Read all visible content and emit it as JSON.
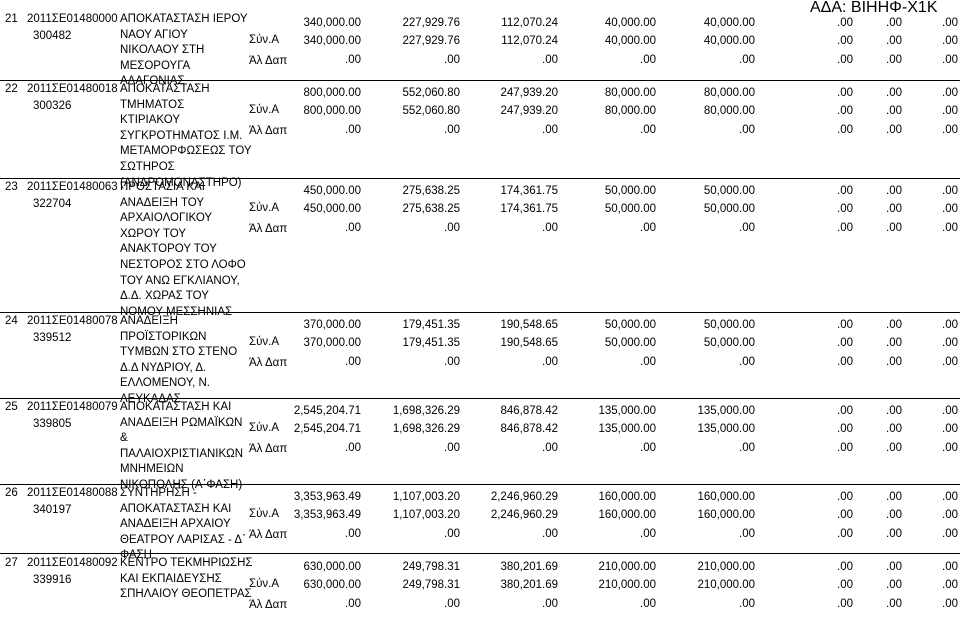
{
  "header": {
    "ada": "ΑΔΑ: ΒΙΗΗΦ-Χ1Κ"
  },
  "labels": {
    "sum": "Σύν.Α",
    "other": "Άλ Δαπ"
  },
  "projects": [
    {
      "seq": "21",
      "code": "2011ΣΕ01480000",
      "mis": "300482",
      "title_lines": [
        "ΑΠΟΚΑΤΑΣΤΑΣΗ ΙΕΡΟΥ",
        "ΝΑΟΥ ΑΓΙΟΥ",
        "ΝΙΚΟΛΑΟΥ ΣΤΗ",
        "ΜΕΣΟΡΟΥΓΑ",
        "ΑΛΑΓΟΝΙΑΣ"
      ],
      "rows": [
        [
          "340,000.00",
          "227,929.76",
          "112,070.24",
          "40,000.00",
          "40,000.00",
          ".00",
          ".00",
          ".00"
        ],
        [
          "340,000.00",
          "227,929.76",
          "112,070.24",
          "40,000.00",
          "40,000.00",
          ".00",
          ".00",
          ".00"
        ],
        [
          ".00",
          ".00",
          ".00",
          ".00",
          ".00",
          ".00",
          ".00",
          ".00"
        ]
      ]
    },
    {
      "seq": "22",
      "code": "2011ΣΕ01480018",
      "mis": "300326",
      "title_lines": [
        "ΑΠΟΚΑΤΑΣΤΑΣΗ",
        "ΤΜΗΜΑΤΟΣ",
        "ΚΤΙΡΙΑΚΟΥ",
        "ΣΥΓΚΡΟΤΗΜΑΤΟΣ Ι.Μ.",
        "ΜΕΤΑΜΟΡΦΩΣΕΩΣ ΤΟΥ",
        "ΣΩΤΗΡΟΣ",
        "(ΑΝΔΡΟΜΟΝΑΣΤΗΡΟ)"
      ],
      "rows": [
        [
          "800,000.00",
          "552,060.80",
          "247,939.20",
          "80,000.00",
          "80,000.00",
          ".00",
          ".00",
          ".00"
        ],
        [
          "800,000.00",
          "552,060.80",
          "247,939.20",
          "80,000.00",
          "80,000.00",
          ".00",
          ".00",
          ".00"
        ],
        [
          ".00",
          ".00",
          ".00",
          ".00",
          ".00",
          ".00",
          ".00",
          ".00"
        ]
      ]
    },
    {
      "seq": "23",
      "code": "2011ΣΕ01480063",
      "mis": "322704",
      "title_lines": [
        "ΠΡΟΣΤΑΣΙΑ ΚΑΙ",
        "ΑΝΑΔΕΙΞΗ ΤΟΥ",
        "ΑΡΧΑΙΟΛΟΓΙΚΟΥ",
        "ΧΩΡΟΥ ΤΟΥ",
        "ΑΝΑΚΤΟΡΟΥ ΤΟΥ",
        "ΝΕΣΤΟΡΟΣ ΣΤΟ ΛΟΦΟ",
        "ΤΟΥ ΑΝΩ ΕΓΚΛΙΑΝΟΥ,",
        "Δ.Δ. ΧΩΡΑΣ ΤΟΥ",
        "ΝΟΜΟΥ ΜΕΣΣΗΝΙΑΣ"
      ],
      "rows": [
        [
          "450,000.00",
          "275,638.25",
          "174,361.75",
          "50,000.00",
          "50,000.00",
          ".00",
          ".00",
          ".00"
        ],
        [
          "450,000.00",
          "275,638.25",
          "174,361.75",
          "50,000.00",
          "50,000.00",
          ".00",
          ".00",
          ".00"
        ],
        [
          ".00",
          ".00",
          ".00",
          ".00",
          ".00",
          ".00",
          ".00",
          ".00"
        ]
      ]
    },
    {
      "seq": "24",
      "code": "2011ΣΕ01480078",
      "mis": "339512",
      "title_lines": [
        "ΑΝΑΔΕΙΞΗ",
        "ΠΡΟΪΣΤΟΡΙΚΩΝ",
        "ΤΥΜΒΩΝ ΣΤΟ ΣΤΕΝΟ",
        "Δ.Δ ΝΥΔΡΙΟΥ, Δ.",
        "ΕΛΛΟΜΕΝΟΥ, Ν.",
        "ΛΕΥΚΑΔΑΣ"
      ],
      "rows": [
        [
          "370,000.00",
          "179,451.35",
          "190,548.65",
          "50,000.00",
          "50,000.00",
          ".00",
          ".00",
          ".00"
        ],
        [
          "370,000.00",
          "179,451.35",
          "190,548.65",
          "50,000.00",
          "50,000.00",
          ".00",
          ".00",
          ".00"
        ],
        [
          ".00",
          ".00",
          ".00",
          ".00",
          ".00",
          ".00",
          ".00",
          ".00"
        ]
      ]
    },
    {
      "seq": "25",
      "code": "2011ΣΕ01480079",
      "mis": "339805",
      "title_lines": [
        "ΑΠΟΚΑΤΑΣΤΑΣΗ ΚΑΙ",
        "ΑΝΑΔΕΙΞΗ ΡΩΜΑΪΚΩΝ",
        "&",
        "ΠΑΛΑΙΟΧΡΙΣΤΙΑΝΙΚΩΝ",
        "ΜΝΗΜΕΙΩΝ",
        "ΝΙΚΟΠΟΛΗΣ (Α΄ΦΑΣΗ)"
      ],
      "rows": [
        [
          "2,545,204.71",
          "1,698,326.29",
          "846,878.42",
          "135,000.00",
          "135,000.00",
          ".00",
          ".00",
          ".00"
        ],
        [
          "2,545,204.71",
          "1,698,326.29",
          "846,878.42",
          "135,000.00",
          "135,000.00",
          ".00",
          ".00",
          ".00"
        ],
        [
          ".00",
          ".00",
          ".00",
          ".00",
          ".00",
          ".00",
          ".00",
          ".00"
        ]
      ]
    },
    {
      "seq": "26",
      "code": "2011ΣΕ01480088",
      "mis": "340197",
      "title_lines": [
        "ΣΥΝΤΗΡΗΣΗ -",
        "ΑΠΟΚΑΤΑΣΤΑΣΗ ΚΑΙ",
        "ΑΝΑΔΕΙΞΗ ΑΡΧΑΙΟΥ",
        "ΘΕΑΤΡΟΥ ΛΑΡΙΣΑΣ - Δ΄",
        "ΦΑΣΗ"
      ],
      "rows": [
        [
          "3,353,963.49",
          "1,107,003.20",
          "2,246,960.29",
          "160,000.00",
          "160,000.00",
          ".00",
          ".00",
          ".00"
        ],
        [
          "3,353,963.49",
          "1,107,003.20",
          "2,246,960.29",
          "160,000.00",
          "160,000.00",
          ".00",
          ".00",
          ".00"
        ],
        [
          ".00",
          ".00",
          ".00",
          ".00",
          ".00",
          ".00",
          ".00",
          ".00"
        ]
      ]
    },
    {
      "seq": "27",
      "code": "2011ΣΕ01480092",
      "mis": "339916",
      "title_lines": [
        "ΚΕΝΤΡΟ ΤΕΚΜΗΡΙΩΣΗΣ",
        "ΚΑΙ ΕΚΠΑΙΔΕΥΣΗΣ",
        "ΣΠΗΛΑΙΟΥ ΘΕΟΠΕΤΡΑΣ"
      ],
      "rows": [
        [
          "630,000.00",
          "249,798.31",
          "380,201.69",
          "210,000.00",
          "210,000.00",
          ".00",
          ".00",
          ".00"
        ],
        [
          "630,000.00",
          "249,798.31",
          "380,201.69",
          "210,000.00",
          "210,000.00",
          ".00",
          ".00",
          ".00"
        ],
        [
          ".00",
          ".00",
          ".00",
          ".00",
          ".00",
          ".00",
          ".00",
          ".00"
        ]
      ]
    }
  ]
}
